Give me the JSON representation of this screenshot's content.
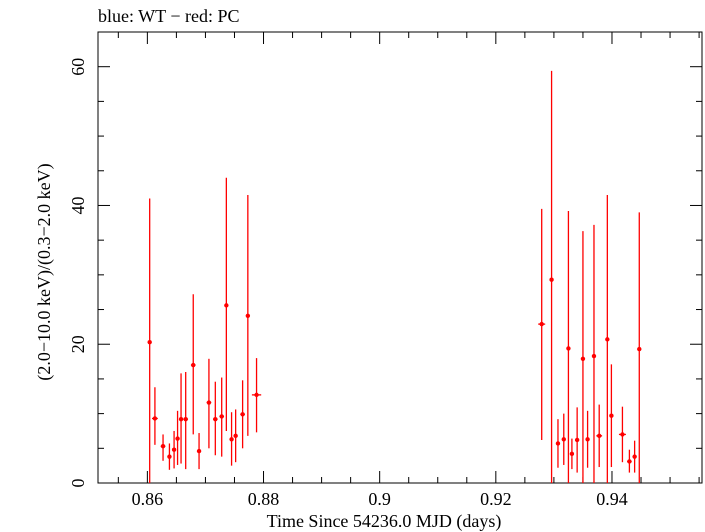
{
  "chart_data": {
    "type": "scatter",
    "title": "blue: WT − red: PC",
    "xlabel": "Time Since 54236.0 MJD (days)",
    "ylabel": "(2.0−10.0 keV)/(0.3−2.0 keV)",
    "xlim": [
      0.8515,
      0.9555
    ],
    "ylim": [
      0,
      65
    ],
    "xticks": [
      0.86,
      0.88,
      0.9,
      0.92,
      0.94
    ],
    "xtick_labels": [
      "0.86",
      "0.88",
      "0.9",
      "0.92",
      "0.94"
    ],
    "yticks": [
      0,
      20,
      40,
      60
    ],
    "ytick_labels": [
      "0",
      "20",
      "40",
      "60"
    ],
    "grid": false,
    "series": [
      {
        "color": "#ff0000",
        "points": [
          {
            "x": 0.8604,
            "y": 20.3,
            "xerr": 0.0003,
            "ylo": 0.0,
            "yhi": 41.0
          },
          {
            "x": 0.8613,
            "y": 9.3,
            "xerr": 0.0005,
            "ylo": 5.5,
            "yhi": 13.8
          },
          {
            "x": 0.8627,
            "y": 5.3,
            "xerr": 0.0004,
            "ylo": 3.2,
            "yhi": 7.0
          },
          {
            "x": 0.8638,
            "y": 3.8,
            "xerr": 0.0003,
            "ylo": 1.9,
            "yhi": 5.7
          },
          {
            "x": 0.8646,
            "y": 4.8,
            "xerr": 0.0003,
            "ylo": 2.1,
            "yhi": 7.5
          },
          {
            "x": 0.8652,
            "y": 6.4,
            "xerr": 0.0003,
            "ylo": 2.6,
            "yhi": 10.4
          },
          {
            "x": 0.8658,
            "y": 9.2,
            "xerr": 0.0003,
            "ylo": 2.8,
            "yhi": 15.8
          },
          {
            "x": 0.8666,
            "y": 9.2,
            "xerr": 0.0004,
            "ylo": 2.0,
            "yhi": 16.0
          },
          {
            "x": 0.8679,
            "y": 17.0,
            "xerr": 0.0004,
            "ylo": 7.0,
            "yhi": 27.2
          },
          {
            "x": 0.8689,
            "y": 4.6,
            "xerr": 0.0003,
            "ylo": 2.0,
            "yhi": 7.2
          },
          {
            "x": 0.8706,
            "y": 11.6,
            "xerr": 0.0004,
            "ylo": 5.0,
            "yhi": 17.9
          },
          {
            "x": 0.8717,
            "y": 9.2,
            "xerr": 0.0004,
            "ylo": 4.0,
            "yhi": 14.6
          },
          {
            "x": 0.8728,
            "y": 9.6,
            "xerr": 0.0004,
            "ylo": 3.8,
            "yhi": 15.2
          },
          {
            "x": 0.8736,
            "y": 25.6,
            "xerr": 0.0003,
            "ylo": 7.5,
            "yhi": 44.0
          },
          {
            "x": 0.8745,
            "y": 6.3,
            "xerr": 0.0003,
            "ylo": 2.5,
            "yhi": 10.2
          },
          {
            "x": 0.8752,
            "y": 6.8,
            "xerr": 0.0003,
            "ylo": 3.0,
            "yhi": 10.6
          },
          {
            "x": 0.8764,
            "y": 9.9,
            "xerr": 0.0004,
            "ylo": 5.0,
            "yhi": 14.8
          },
          {
            "x": 0.8773,
            "y": 24.1,
            "xerr": 0.0003,
            "ylo": 6.8,
            "yhi": 41.5
          },
          {
            "x": 0.8788,
            "y": 12.7,
            "xerr": 0.0008,
            "ylo": 7.3,
            "yhi": 18.0
          },
          {
            "x": 0.9279,
            "y": 22.9,
            "xerr": 0.0006,
            "ylo": 6.2,
            "yhi": 39.5
          },
          {
            "x": 0.9296,
            "y": 29.3,
            "xerr": 0.0003,
            "ylo": 0.0,
            "yhi": 59.4
          },
          {
            "x": 0.9307,
            "y": 5.7,
            "xerr": 0.0003,
            "ylo": 2.2,
            "yhi": 9.2
          },
          {
            "x": 0.9317,
            "y": 6.3,
            "xerr": 0.0003,
            "ylo": 2.6,
            "yhi": 10.0
          },
          {
            "x": 0.9325,
            "y": 19.4,
            "xerr": 0.0003,
            "ylo": 0.0,
            "yhi": 39.2
          },
          {
            "x": 0.9331,
            "y": 4.2,
            "xerr": 0.0003,
            "ylo": 2.0,
            "yhi": 6.4
          },
          {
            "x": 0.934,
            "y": 6.2,
            "xerr": 0.0003,
            "ylo": 1.5,
            "yhi": 10.9
          },
          {
            "x": 0.935,
            "y": 17.9,
            "xerr": 0.0003,
            "ylo": 0.0,
            "yhi": 36.3
          },
          {
            "x": 0.9358,
            "y": 6.3,
            "xerr": 0.0003,
            "ylo": 2.2,
            "yhi": 10.4
          },
          {
            "x": 0.9369,
            "y": 18.3,
            "xerr": 0.0003,
            "ylo": 0.0,
            "yhi": 37.2
          },
          {
            "x": 0.9378,
            "y": 6.8,
            "xerr": 0.0005,
            "ylo": 2.3,
            "yhi": 11.3
          },
          {
            "x": 0.9392,
            "y": 20.7,
            "xerr": 0.0003,
            "ylo": 0.0,
            "yhi": 41.5
          },
          {
            "x": 0.9399,
            "y": 9.7,
            "xerr": 0.0003,
            "ylo": 2.3,
            "yhi": 17.1
          },
          {
            "x": 0.9418,
            "y": 7.0,
            "xerr": 0.0006,
            "ylo": 3.0,
            "yhi": 11.0
          },
          {
            "x": 0.943,
            "y": 3.1,
            "xerr": 0.0004,
            "ylo": 1.5,
            "yhi": 4.8
          },
          {
            "x": 0.9439,
            "y": 3.8,
            "xerr": 0.0003,
            "ylo": 1.5,
            "yhi": 6.1
          },
          {
            "x": 0.9447,
            "y": 19.3,
            "xerr": 0.0003,
            "ylo": 0.0,
            "yhi": 39.0
          }
        ]
      }
    ]
  }
}
